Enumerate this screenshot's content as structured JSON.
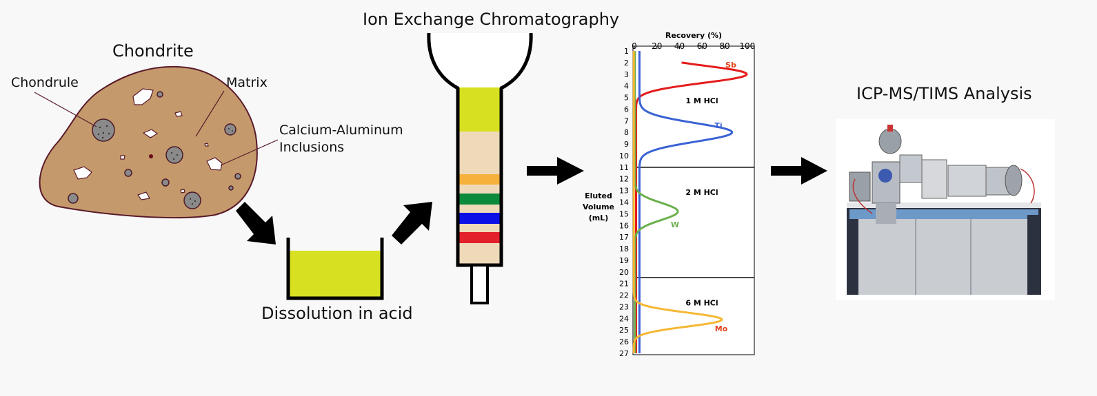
{
  "chondrite": {
    "title": "Chondrite",
    "chondrule_label": "Chondrule",
    "matrix_label": "Matrix",
    "cai_label_line1": "Calcium-Aluminum",
    "cai_label_line2": "Inclusions"
  },
  "dissolution": {
    "title": "Dissolution in acid"
  },
  "chromatography": {
    "title": "Ion Exchange Chromatography"
  },
  "analysis": {
    "title": "ICP-MS/TIMS Analysis"
  },
  "chart_data": {
    "type": "line",
    "xlabel": "Recovery (%)",
    "ylabel_lines": [
      "Eluted",
      "Volume",
      "(mL)"
    ],
    "xlim": [
      0,
      105
    ],
    "ylim": [
      1,
      27
    ],
    "x_ticks": [
      0,
      20,
      40,
      60,
      80,
      100
    ],
    "y_ticks": [
      1,
      2,
      3,
      4,
      5,
      6,
      7,
      8,
      9,
      10,
      11,
      12,
      13,
      14,
      15,
      16,
      17,
      18,
      19,
      20,
      21,
      22,
      23,
      24,
      25,
      26,
      27
    ],
    "sections": [
      {
        "label": "1 M HCl",
        "from": 1,
        "to": 11
      },
      {
        "label": "2 M HCl",
        "from": 11,
        "to": 20.5
      },
      {
        "label": "6 M HCl",
        "from": 20.5,
        "to": 27
      }
    ],
    "series": [
      {
        "name": "Sb",
        "color": "#e51b1b",
        "label_color": "#e0421a",
        "peak_volume": 3,
        "peak_recovery": 98,
        "width": 0.75,
        "start": 2,
        "end": 27
      },
      {
        "name": "Ti",
        "color": "#3a62d4",
        "label_color": "#3a62d4",
        "peak_volume": 8,
        "peak_recovery": 82,
        "width": 0.8,
        "start": 1,
        "end": 27
      },
      {
        "name": "W",
        "color": "#6ab04c",
        "label_color": "#6ab04c",
        "peak_volume": 14.8,
        "peak_recovery": 38,
        "width": 0.75,
        "start": 1,
        "end": 27
      },
      {
        "name": "Mo",
        "color": "#f5b733",
        "label_color": "#e0421a",
        "peak_volume": 24.1,
        "peak_recovery": 78,
        "width": 0.6,
        "start": 1,
        "end": 27
      }
    ]
  }
}
